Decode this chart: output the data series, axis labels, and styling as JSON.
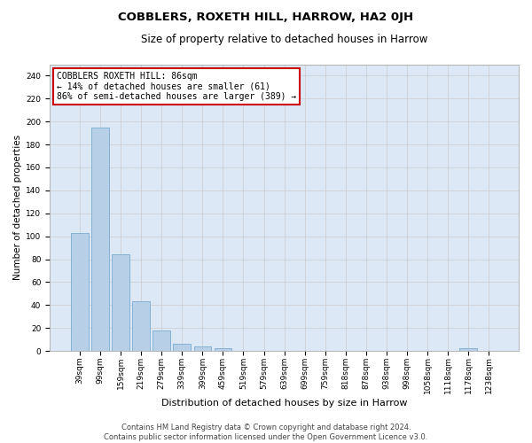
{
  "title": "COBBLERS, ROXETH HILL, HARROW, HA2 0JH",
  "subtitle": "Size of property relative to detached houses in Harrow",
  "xlabel": "Distribution of detached houses by size in Harrow",
  "ylabel": "Number of detached properties",
  "categories": [
    "39sqm",
    "99sqm",
    "159sqm",
    "219sqm",
    "279sqm",
    "339sqm",
    "399sqm",
    "459sqm",
    "519sqm",
    "579sqm",
    "639sqm",
    "699sqm",
    "759sqm",
    "818sqm",
    "878sqm",
    "938sqm",
    "998sqm",
    "1058sqm",
    "1118sqm",
    "1178sqm",
    "1238sqm"
  ],
  "values": [
    103,
    195,
    84,
    43,
    18,
    6,
    4,
    2,
    0,
    0,
    0,
    0,
    0,
    0,
    0,
    0,
    0,
    0,
    0,
    2,
    0
  ],
  "bar_color": "#b8cfe8",
  "bar_edge_color": "#7aaad0",
  "annotation_title": "COBBLERS ROXETH HILL: 86sqm",
  "annotation_line1": "← 14% of detached houses are smaller (61)",
  "annotation_line2": "86% of semi-detached houses are larger (389) →",
  "annotation_box_color": "#ffffff",
  "annotation_box_edge": "#cc0000",
  "ylim": [
    0,
    250
  ],
  "yticks": [
    0,
    20,
    40,
    60,
    80,
    100,
    120,
    140,
    160,
    180,
    200,
    220,
    240
  ],
  "grid_color": "#cccccc",
  "background_color": "#dce8f5",
  "footer_line1": "Contains HM Land Registry data © Crown copyright and database right 2024.",
  "footer_line2": "Contains public sector information licensed under the Open Government Licence v3.0.",
  "title_fontsize": 9.5,
  "subtitle_fontsize": 8.5,
  "xlabel_fontsize": 8,
  "ylabel_fontsize": 7.5,
  "tick_fontsize": 6.5,
  "annotation_fontsize": 7,
  "footer_fontsize": 6
}
